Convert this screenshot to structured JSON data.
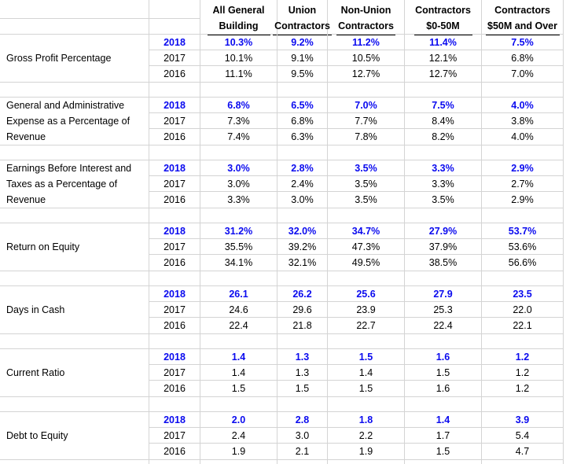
{
  "colors": {
    "highlight_blue": "#0a0aef",
    "text": "#000000",
    "gridline": "#d4d4d4",
    "header_underline": "#000000",
    "background": "#ffffff"
  },
  "chart_data": {
    "type": "table",
    "columns": [
      "All General Building",
      "Union Contractors",
      "Non-Union Contractors",
      "Contractors $0-50M",
      "Contractors $50M and Over"
    ],
    "column_header_lines": [
      [
        "All General",
        "Building"
      ],
      [
        "Union",
        "Contractors"
      ],
      [
        "Non-Union",
        "Contractors"
      ],
      [
        "Contractors",
        "$0-50M"
      ],
      [
        "Contractors",
        "$50M and Over"
      ]
    ],
    "years": [
      "2018",
      "2017",
      "2016"
    ],
    "emphasis_year": "2018",
    "row_groups": [
      {
        "metric": "Gross Profit Percentage",
        "label_lines": [
          "Gross Profit Percentage"
        ],
        "rows": [
          {
            "year": "2018",
            "emphasis": true,
            "cells": [
              "10.3%",
              "9.2%",
              "11.2%",
              "11.4%",
              "7.5%"
            ]
          },
          {
            "year": "2017",
            "emphasis": false,
            "cells": [
              "10.1%",
              "9.1%",
              "10.5%",
              "12.1%",
              "6.8%"
            ]
          },
          {
            "year": "2016",
            "emphasis": false,
            "cells": [
              "11.1%",
              "9.5%",
              "12.7%",
              "12.7%",
              "7.0%"
            ]
          }
        ]
      },
      {
        "metric": "General and Administrative Expense as a Percentage of Revenue",
        "label_lines": [
          "General and Administrative",
          "Expense as a Percentage of",
          "Revenue"
        ],
        "rows": [
          {
            "year": "2018",
            "emphasis": true,
            "cells": [
              "6.8%",
              "6.5%",
              "7.0%",
              "7.5%",
              "4.0%"
            ]
          },
          {
            "year": "2017",
            "emphasis": false,
            "cells": [
              "7.3%",
              "6.8%",
              "7.7%",
              "8.4%",
              "3.8%"
            ]
          },
          {
            "year": "2016",
            "emphasis": false,
            "cells": [
              "7.4%",
              "6.3%",
              "7.8%",
              "8.2%",
              "4.0%"
            ]
          }
        ]
      },
      {
        "metric": "Earnings Before Interest and Taxes as a Percentage of Revenue",
        "label_lines": [
          "Earnings Before Interest and",
          "Taxes as a Percentage of",
          "Revenue"
        ],
        "rows": [
          {
            "year": "2018",
            "emphasis": true,
            "cells": [
              "3.0%",
              "2.8%",
              "3.5%",
              "3.3%",
              "2.9%"
            ]
          },
          {
            "year": "2017",
            "emphasis": false,
            "cells": [
              "3.0%",
              "2.4%",
              "3.5%",
              "3.3%",
              "2.7%"
            ]
          },
          {
            "year": "2016",
            "emphasis": false,
            "cells": [
              "3.3%",
              "3.0%",
              "3.5%",
              "3.5%",
              "2.9%"
            ]
          }
        ]
      },
      {
        "metric": "Return on Equity",
        "label_lines": [
          "Return on Equity"
        ],
        "rows": [
          {
            "year": "2018",
            "emphasis": true,
            "cells": [
              "31.2%",
              "32.0%",
              "34.7%",
              "27.9%",
              "53.7%"
            ]
          },
          {
            "year": "2017",
            "emphasis": false,
            "cells": [
              "35.5%",
              "39.2%",
              "47.3%",
              "37.9%",
              "53.6%"
            ]
          },
          {
            "year": "2016",
            "emphasis": false,
            "cells": [
              "34.1%",
              "32.1%",
              "49.5%",
              "38.5%",
              "56.6%"
            ]
          }
        ]
      },
      {
        "metric": "Days in Cash",
        "label_lines": [
          "Days in Cash"
        ],
        "rows": [
          {
            "year": "2018",
            "emphasis": true,
            "cells": [
              "26.1",
              "26.2",
              "25.6",
              "27.9",
              "23.5"
            ]
          },
          {
            "year": "2017",
            "emphasis": false,
            "cells": [
              "24.6",
              "29.6",
              "23.9",
              "25.3",
              "22.0"
            ]
          },
          {
            "year": "2016",
            "emphasis": false,
            "cells": [
              "22.4",
              "21.8",
              "22.7",
              "22.4",
              "22.1"
            ]
          }
        ]
      },
      {
        "metric": "Current Ratio",
        "label_lines": [
          "Current Ratio"
        ],
        "rows": [
          {
            "year": "2018",
            "emphasis": true,
            "cells": [
              "1.4",
              "1.3",
              "1.5",
              "1.6",
              "1.2"
            ]
          },
          {
            "year": "2017",
            "emphasis": false,
            "cells": [
              "1.4",
              "1.3",
              "1.4",
              "1.5",
              "1.2"
            ]
          },
          {
            "year": "2016",
            "emphasis": false,
            "cells": [
              "1.5",
              "1.5",
              "1.5",
              "1.6",
              "1.2"
            ]
          }
        ]
      },
      {
        "metric": "Debt to Equity",
        "label_lines": [
          "Debt to Equity"
        ],
        "rows": [
          {
            "year": "2018",
            "emphasis": true,
            "cells": [
              "2.0",
              "2.8",
              "1.8",
              "1.4",
              "3.9"
            ]
          },
          {
            "year": "2017",
            "emphasis": false,
            "cells": [
              "2.4",
              "3.0",
              "2.2",
              "1.7",
              "5.4"
            ]
          },
          {
            "year": "2016",
            "emphasis": false,
            "cells": [
              "1.9",
              "2.1",
              "1.9",
              "1.5",
              "4.7"
            ]
          }
        ]
      }
    ]
  }
}
